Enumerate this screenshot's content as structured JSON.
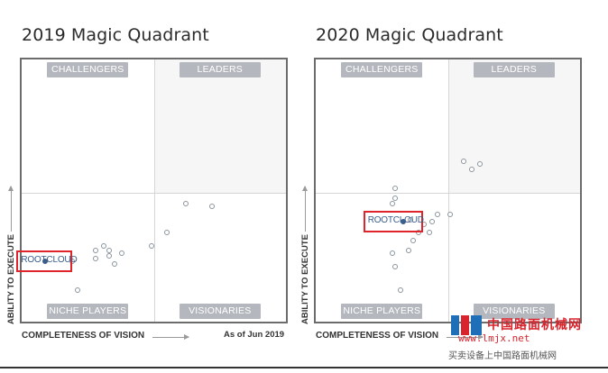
{
  "chart_data": [
    {
      "type": "scatter",
      "title": "2019 Magic Quadrant",
      "quadrants": [
        "CHALLENGERS",
        "LEADERS",
        "NICHE PLAYERS",
        "VISIONARIES"
      ],
      "xlabel": "COMPLETENESS OF VISION",
      "ylabel": "ABILITY TO EXECUTE",
      "footnote": "As of Jun 2019",
      "xlim": [
        0,
        1
      ],
      "ylim": [
        0,
        1
      ],
      "highlight": {
        "label": "ROOTCLOUD",
        "x": 0.09,
        "y": 0.23
      },
      "points": [
        {
          "x": 0.09,
          "y": 0.23,
          "filled": true
        },
        {
          "x": 0.19,
          "y": 0.23
        },
        {
          "x": 0.28,
          "y": 0.27
        },
        {
          "x": 0.31,
          "y": 0.29
        },
        {
          "x": 0.33,
          "y": 0.27
        },
        {
          "x": 0.28,
          "y": 0.24
        },
        {
          "x": 0.33,
          "y": 0.25
        },
        {
          "x": 0.38,
          "y": 0.26
        },
        {
          "x": 0.35,
          "y": 0.22
        },
        {
          "x": 0.21,
          "y": 0.12
        },
        {
          "x": 0.49,
          "y": 0.29
        },
        {
          "x": 0.55,
          "y": 0.34
        },
        {
          "x": 0.62,
          "y": 0.45
        },
        {
          "x": 0.72,
          "y": 0.44
        }
      ]
    },
    {
      "type": "scatter",
      "title": "2020 Magic Quadrant",
      "quadrants": [
        "CHALLENGERS",
        "LEADERS",
        "NICHE PLAYERS",
        "VISIONARIES"
      ],
      "xlabel": "COMPLETENESS OF VISION",
      "ylabel": "ABILITY TO EXECUTE",
      "xlim": [
        0,
        1
      ],
      "ylim": [
        0,
        1
      ],
      "highlight": {
        "label": "ROOTCLOUD",
        "x": 0.33,
        "y": 0.38
      },
      "points": [
        {
          "x": 0.33,
          "y": 0.38,
          "filled": true
        },
        {
          "x": 0.29,
          "y": 0.45
        },
        {
          "x": 0.36,
          "y": 0.39
        },
        {
          "x": 0.41,
          "y": 0.37
        },
        {
          "x": 0.44,
          "y": 0.38
        },
        {
          "x": 0.46,
          "y": 0.41
        },
        {
          "x": 0.43,
          "y": 0.34
        },
        {
          "x": 0.39,
          "y": 0.34
        },
        {
          "x": 0.37,
          "y": 0.31
        },
        {
          "x": 0.35,
          "y": 0.27
        },
        {
          "x": 0.29,
          "y": 0.26
        },
        {
          "x": 0.3,
          "y": 0.21
        },
        {
          "x": 0.32,
          "y": 0.12
        },
        {
          "x": 0.3,
          "y": 0.47
        },
        {
          "x": 0.3,
          "y": 0.51
        },
        {
          "x": 0.51,
          "y": 0.41
        },
        {
          "x": 0.56,
          "y": 0.61
        },
        {
          "x": 0.59,
          "y": 0.58
        },
        {
          "x": 0.62,
          "y": 0.6
        }
      ]
    }
  ],
  "watermark": {
    "main": "中国路面机械网",
    "sub": "www.lmjx.net",
    "tag": "买卖设备上中国路面机械网"
  }
}
